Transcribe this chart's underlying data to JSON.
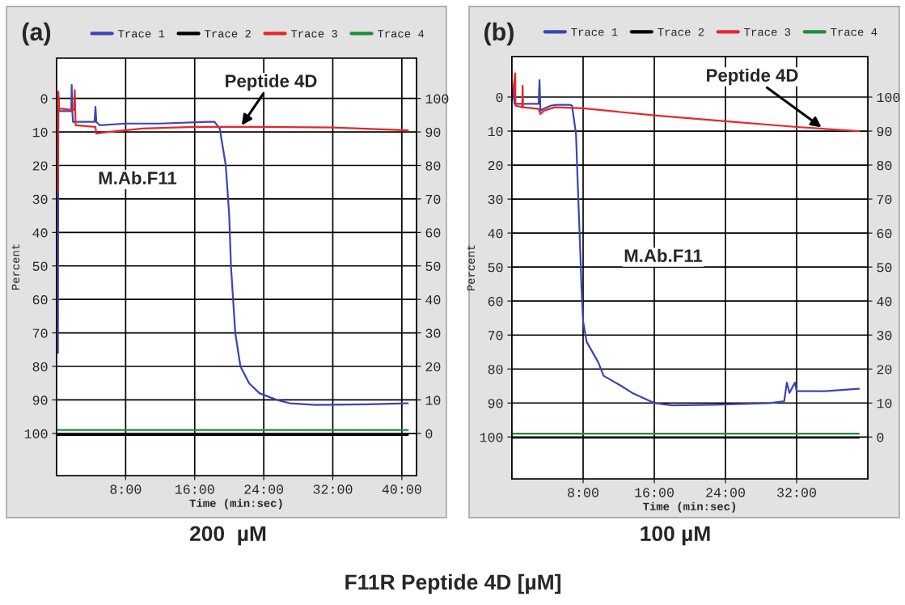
{
  "chart_data": [
    {
      "type": "line",
      "xlabel": "Time (min:sec)",
      "ylabel": "Percent",
      "xlim": [
        0,
        41.7
      ],
      "ylim": [
        112.6,
        -12
      ],
      "y2lim": [
        -12.6,
        112
      ],
      "xticks": [
        {
          "value": 8,
          "label": "8:00"
        },
        {
          "value": 16,
          "label": "16:00"
        },
        {
          "value": 24,
          "label": "24:00"
        },
        {
          "value": 32,
          "label": "32:00"
        },
        {
          "value": 40,
          "label": "40:00"
        }
      ],
      "yticks": [
        0,
        10,
        20,
        30,
        40,
        50,
        60,
        70,
        80,
        90,
        100
      ],
      "y2ticks": [
        0,
        10,
        20,
        30,
        40,
        50,
        60,
        70,
        80,
        90,
        100
      ],
      "grid": true,
      "legend": "top",
      "series": [
        {
          "name": "Trace 1",
          "color": "#3a46b4",
          "x": [
            0.15,
            0.2,
            0.3,
            1.7,
            1.75,
            1.8,
            1.9,
            4.4,
            4.5,
            4.6,
            5,
            8,
            12,
            17.5,
            18.3,
            18.9,
            19.6,
            20,
            20.2,
            20.7,
            21.3,
            22.3,
            23.5,
            25.5,
            27,
            30,
            36,
            40.7
          ],
          "values": [
            76,
            0,
            3.8,
            3.8,
            -4,
            3,
            7,
            7,
            2.5,
            7,
            8,
            7.5,
            7.5,
            7,
            7,
            9,
            20,
            35,
            50,
            70,
            80,
            85,
            88,
            90,
            91,
            91.5,
            91.3,
            91
          ]
        },
        {
          "name": "Trace 2",
          "color": "#000000",
          "x": [
            0,
            40.7
          ],
          "values": [
            100.5,
            100.5
          ]
        },
        {
          "name": "Trace 3",
          "color": "#e8262a",
          "x": [
            0.15,
            0.2,
            0.3,
            2.0,
            2.1,
            2.2,
            4.5,
            4.6,
            6,
            10,
            16,
            24,
            32,
            40.7
          ],
          "values": [
            28,
            -2,
            3,
            3.5,
            -2.5,
            8,
            8.5,
            10.5,
            10,
            9,
            8.5,
            8.5,
            8.7,
            9.5
          ]
        },
        {
          "name": "Trace 4",
          "color": "#1e8c3a",
          "x": [
            0,
            40.7
          ],
          "values": [
            99,
            99
          ]
        }
      ],
      "annotations": [
        "(a)",
        "M.Ab.F11",
        {
          "text": "Peptide 4D",
          "x": 21.3,
          "y": 8.6
        },
        "200  µM",
        "F11R Peptide 4D [µM]"
      ]
    },
    {
      "type": "line",
      "xlabel": "Time (min:sec)",
      "ylabel": "Percent",
      "xlim": [
        0,
        40
      ],
      "ylim": [
        112.3,
        -11.9
      ],
      "y2lim": [
        -12.3,
        111.9
      ],
      "xticks": [
        {
          "value": 8,
          "label": "8:00"
        },
        {
          "value": 16,
          "label": "16:00"
        },
        {
          "value": 24,
          "label": "24:00"
        },
        {
          "value": 32,
          "label": "32:00"
        }
      ],
      "yticks": [
        0,
        10,
        20,
        30,
        40,
        50,
        60,
        70,
        80,
        90,
        100
      ],
      "y2ticks": [
        0,
        10,
        20,
        30,
        40,
        50,
        60,
        70,
        80,
        90,
        100
      ],
      "grid": true,
      "legend": "top",
      "series": [
        {
          "name": "Trace 1",
          "color": "#3a46b4",
          "x": [
            0,
            0.22,
            0.28,
            3,
            3.1,
            3.2,
            3.5,
            4.4,
            5,
            6.5,
            6.75,
            7.2,
            7.4,
            7.7,
            7.8,
            8,
            8.4,
            9.7,
            10.3,
            12.3,
            13.5,
            16,
            18,
            22.8,
            29,
            30.6,
            30.9,
            31.2,
            31.8,
            32,
            35.2,
            39
          ],
          "values": [
            1,
            -3.5,
            2,
            2,
            -5,
            4,
            3.5,
            2.5,
            2.3,
            2.3,
            2.5,
            10.8,
            25.8,
            46.7,
            55,
            66,
            72,
            78,
            82,
            85,
            87,
            90,
            90.7,
            90.5,
            90,
            89.5,
            84,
            87,
            84,
            86.5,
            86.5,
            85.8
          ]
        },
        {
          "name": "Trace 2",
          "color": "#000000",
          "x": [
            0,
            39
          ],
          "values": [
            100.2,
            100.2
          ]
        },
        {
          "name": "Trace 3",
          "color": "#e8262a",
          "x": [
            0,
            0.37,
            0.4,
            1.15,
            1.2,
            1.25,
            3,
            3.2,
            3.6,
            4.8,
            8,
            16,
            24,
            32,
            39
          ],
          "values": [
            1,
            -7,
            2.5,
            3,
            -3.3,
            3,
            3.5,
            5,
            4,
            3,
            3.3,
            5.4,
            7.1,
            8.8,
            10
          ]
        },
        {
          "name": "Trace 4",
          "color": "#1e8c3a",
          "x": [
            0,
            39
          ],
          "values": [
            99,
            99
          ]
        }
      ],
      "annotations": [
        "(b)",
        "M.Ab.F11",
        {
          "text": "Peptide 4D",
          "x": 35,
          "y": 9.3
        },
        "100 µM"
      ]
    }
  ]
}
